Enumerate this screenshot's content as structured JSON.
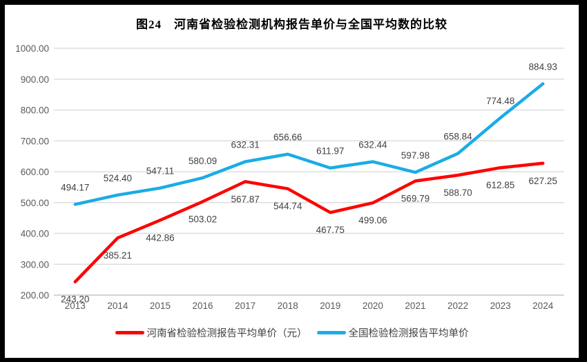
{
  "title": "图24　河南省检验检测机构报告单价与全国平均数的比较",
  "chart_data": {
    "type": "line",
    "title": "图24　河南省检验检测机构报告单价与全国平均数的比较",
    "categories": [
      "2013",
      "2014",
      "2015",
      "2016",
      "2017",
      "2018",
      "2019",
      "2020",
      "2021",
      "2022",
      "2023",
      "2024"
    ],
    "series": [
      {
        "name": "河南省检验检测报告平均单价（元）",
        "color": "#FF0000",
        "label_position": "below",
        "values": [
          243.2,
          385.21,
          442.86,
          503.02,
          567.87,
          544.74,
          467.75,
          499.06,
          569.79,
          588.7,
          612.85,
          627.25
        ]
      },
      {
        "name": "全国检验检测报告平均单价",
        "color": "#1BACE6",
        "label_position": "above",
        "values": [
          494.17,
          524.4,
          547.11,
          580.09,
          632.31,
          656.66,
          611.97,
          632.44,
          597.98,
          658.84,
          774.48,
          884.93
        ]
      }
    ],
    "ylim": [
      200,
      1000
    ],
    "ytick_step": 100,
    "ytick_labels": [
      "200.00",
      "300.00",
      "400.00",
      "500.00",
      "600.00",
      "700.00",
      "800.00",
      "900.00",
      "1000.00"
    ],
    "grid": true,
    "data_labels": true,
    "legend_position": "bottom",
    "grid_color": "#DDDDDD",
    "axis_color": "#C6C6C6",
    "tick_label_color": "#595959",
    "data_label_color": "#404040",
    "panel_background": "#FFFFFF",
    "frame_color": "#000000"
  }
}
